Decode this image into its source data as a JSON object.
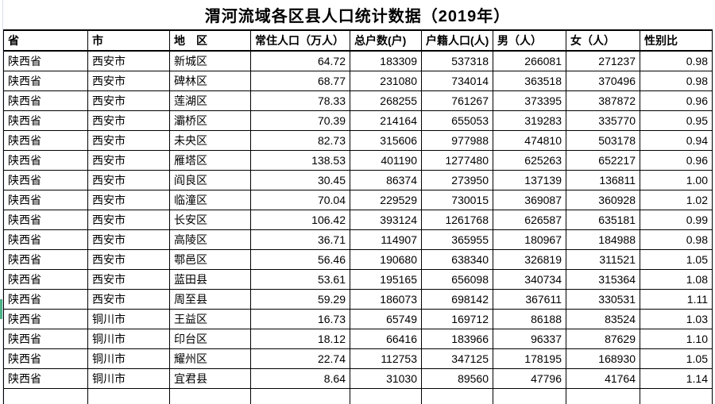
{
  "title": "渭河流域各区县人口统计数据（2019年）",
  "colors": {
    "grid_border": "#000000",
    "selection_green": "#4db487",
    "sheet_edge": "#d8dfe8",
    "background": "#ffffff"
  },
  "table": {
    "headers": [
      "省",
      "市",
      "地　区",
      "常住人口（万人）",
      "总户数(户)",
      "户籍人口(人)",
      "男（人）",
      "女（人）",
      "性别比"
    ],
    "rows": [
      [
        "陕西省",
        "西安市",
        "新城区",
        "64.72",
        "183309",
        "537318",
        "266081",
        "271237",
        "0.98"
      ],
      [
        "陕西省",
        "西安市",
        "碑林区",
        "68.77",
        "231080",
        "734014",
        "363518",
        "370496",
        "0.98"
      ],
      [
        "陕西省",
        "西安市",
        "莲湖区",
        "78.33",
        "268255",
        "761267",
        "373395",
        "387872",
        "0.96"
      ],
      [
        "陕西省",
        "西安市",
        "灞桥区",
        "70.39",
        "214164",
        "655053",
        "319283",
        "335770",
        "0.95"
      ],
      [
        "陕西省",
        "西安市",
        "未央区",
        "82.73",
        "315606",
        "977988",
        "474810",
        "503178",
        "0.94"
      ],
      [
        "陕西省",
        "西安市",
        "雁塔区",
        "138.53",
        "401190",
        "1277480",
        "625263",
        "652217",
        "0.96"
      ],
      [
        "陕西省",
        "西安市",
        "阎良区",
        "30.45",
        "86374",
        "273950",
        "137139",
        "136811",
        "1.00"
      ],
      [
        "陕西省",
        "西安市",
        "临潼区",
        "70.04",
        "229529",
        "730015",
        "369087",
        "360928",
        "1.02"
      ],
      [
        "陕西省",
        "西安市",
        "长安区",
        "106.42",
        "393124",
        "1261768",
        "626587",
        "635181",
        "0.99"
      ],
      [
        "陕西省",
        "西安市",
        "高陵区",
        "36.71",
        "114907",
        "365955",
        "180967",
        "184988",
        "0.98"
      ],
      [
        "陕西省",
        "西安市",
        "鄠邑区",
        "56.46",
        "190680",
        "638340",
        "326819",
        "311521",
        "1.05"
      ],
      [
        "陕西省",
        "西安市",
        "蓝田县",
        "53.61",
        "195165",
        "656098",
        "340734",
        "315364",
        "1.08"
      ],
      [
        "陕西省",
        "西安市",
        "周至县",
        "59.29",
        "186073",
        "698142",
        "367611",
        "330531",
        "1.11"
      ],
      [
        "陕西省",
        "铜川市",
        "王益区",
        "16.73",
        "65749",
        "169712",
        "86188",
        "83524",
        "1.03"
      ],
      [
        "陕西省",
        "铜川市",
        "印台区",
        "18.12",
        "66416",
        "183966",
        "96337",
        "87629",
        "1.10"
      ],
      [
        "陕西省",
        "铜川市",
        "耀州区",
        "22.74",
        "112753",
        "347125",
        "178195",
        "168930",
        "1.05"
      ],
      [
        "陕西省",
        "铜川市",
        "宜君县",
        "8.64",
        "31030",
        "89560",
        "47796",
        "41764",
        "1.14"
      ]
    ]
  }
}
